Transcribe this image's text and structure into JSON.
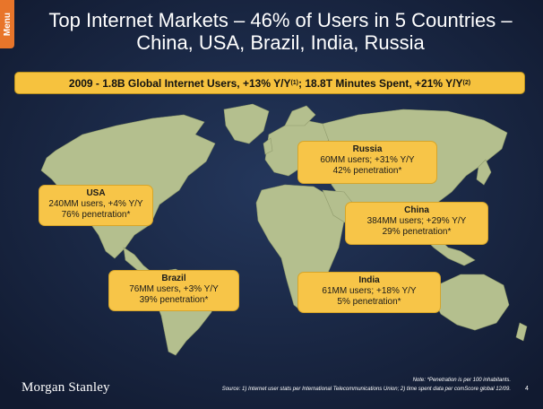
{
  "menu": {
    "label": "Menu"
  },
  "title": {
    "line1": "Top Internet Markets – 46% of Users in 5 Countries –",
    "line2": "China, USA, Brazil, India, Russia"
  },
  "banner": {
    "part1": "2009 - 1.8B Global Internet Users, +13% Y/Y",
    "sup1": "(1)",
    "part2": "; 18.8T Minutes Spent, +21% Y/Y",
    "sup2": "(2)"
  },
  "callouts": {
    "usa": {
      "name": "USA",
      "line1": "240MM users, +4% Y/Y",
      "line2": "76% penetration*"
    },
    "russia": {
      "name": "Russia",
      "line1": "60MM users; +31% Y/Y",
      "line2": "42% penetration*"
    },
    "china": {
      "name": "China",
      "line1": "384MM users; +29% Y/Y",
      "line2": "29% penetration*"
    },
    "brazil": {
      "name": "Brazil",
      "line1": "76MM users, +3% Y/Y",
      "line2": "39% penetration*"
    },
    "india": {
      "name": "India",
      "line1": "61MM users; +18% Y/Y",
      "line2": "5% penetration*"
    }
  },
  "footer": {
    "logo": "Morgan Stanley",
    "note": "Note: *Penetration is per 100 inhabitants.",
    "source": "Source: 1) Internet user stats per International Telecommunications Union; 2) time spent data per comScore global 12/09.",
    "page": "4"
  },
  "colors": {
    "background": "#14213d",
    "land": "#b4bf8e",
    "callout": "#f7c548",
    "menu": "#e8752a"
  }
}
